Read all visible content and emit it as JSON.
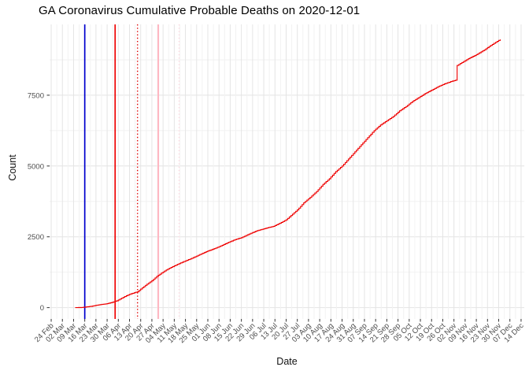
{
  "chart_data": {
    "type": "line",
    "title": "GA Coronavirus Cumulative Probable Deaths on 2020-12-01",
    "xlabel": "Date",
    "ylabel": "Count",
    "x_range": [
      "2020-02-23",
      "2020-12-16"
    ],
    "ylim": [
      -400,
      10000
    ],
    "grid": true,
    "legend": "none",
    "x_tick_start": "2020-02-24",
    "x_tick_interval_days": 7,
    "x_tick_labels": [
      "24 Feb",
      "02 Mar",
      "09 Mar",
      "16 Mar",
      "23 Mar",
      "30 Mar",
      "06 Apr",
      "13 Apr",
      "20 Apr",
      "27 Apr",
      "04 May",
      "11 May",
      "18 May",
      "25 May",
      "01 Jun",
      "08 Jun",
      "15 Jun",
      "22 Jun",
      "29 Jun",
      "06 Jul",
      "13 Jul",
      "20 Jul",
      "27 Jul",
      "03 Aug",
      "10 Aug",
      "17 Aug",
      "24 Aug",
      "31 Aug",
      "07 Sep",
      "14 Sep",
      "21 Sep",
      "28 Sep",
      "05 Oct",
      "12 Oct",
      "19 Oct",
      "26 Oct",
      "02 Nov",
      "09 Nov",
      "16 Nov",
      "23 Nov",
      "30 Nov",
      "07 Dec",
      "14 Dec"
    ],
    "y_ticks": [
      0,
      2500,
      5000,
      7500
    ],
    "y_tick_labels": [
      "0",
      "2500",
      "5000",
      "7500"
    ],
    "y_minor_ticks": [
      1250,
      3750,
      6250,
      8750
    ],
    "colors": {
      "background": "#ffffff",
      "major_grid": "#e4e4e4",
      "minor_grid": "#f2f2f2",
      "axis_text": "#4d4d4d",
      "tick_mark": "#333333",
      "series_red": "#ee0000"
    },
    "event_lines": [
      {
        "name": "blue-event-line",
        "date": "2020-03-16",
        "color": "#0000cd",
        "style": "solid",
        "width": 1.7
      },
      {
        "name": "red-event-line",
        "date": "2020-04-04",
        "color": "#ee0000",
        "style": "solid",
        "width": 1.7
      },
      {
        "name": "red-dotted-event-line",
        "date": "2020-04-18",
        "color": "#dd0000",
        "style": "dotted",
        "width": 1.4
      },
      {
        "name": "pink-event-line",
        "date": "2020-05-01",
        "color": "#ffb6c1",
        "style": "solid",
        "width": 2.0
      },
      {
        "name": "pink-dotted-event-line",
        "date": "2020-05-14",
        "color": "#ffd9e0",
        "style": "dotted",
        "width": 1.4
      }
    ],
    "series": [
      {
        "name": "Cumulative probable deaths",
        "color": "#ee0000",
        "points": [
          [
            "2020-03-10",
            0
          ],
          [
            "2020-03-14",
            5
          ],
          [
            "2020-03-17",
            25
          ],
          [
            "2020-03-20",
            45
          ],
          [
            "2020-03-23",
            80
          ],
          [
            "2020-03-26",
            108
          ],
          [
            "2020-03-30",
            140
          ],
          [
            "2020-04-02",
            185
          ],
          [
            "2020-04-05",
            240
          ],
          [
            "2020-04-08",
            330
          ],
          [
            "2020-04-11",
            420
          ],
          [
            "2020-04-14",
            490
          ],
          [
            "2020-04-18",
            560
          ],
          [
            "2020-04-21",
            700
          ],
          [
            "2020-04-24",
            830
          ],
          [
            "2020-04-27",
            950
          ],
          [
            "2020-04-30",
            1100
          ],
          [
            "2020-05-03",
            1220
          ],
          [
            "2020-05-06",
            1330
          ],
          [
            "2020-05-09",
            1420
          ],
          [
            "2020-05-12",
            1500
          ],
          [
            "2020-05-15",
            1580
          ],
          [
            "2020-05-18",
            1650
          ],
          [
            "2020-05-21",
            1720
          ],
          [
            "2020-05-25",
            1820
          ],
          [
            "2020-05-28",
            1900
          ],
          [
            "2020-06-01",
            2000
          ],
          [
            "2020-06-04",
            2060
          ],
          [
            "2020-06-08",
            2150
          ],
          [
            "2020-06-11",
            2230
          ],
          [
            "2020-06-15",
            2330
          ],
          [
            "2020-06-18",
            2400
          ],
          [
            "2020-06-22",
            2470
          ],
          [
            "2020-06-25",
            2550
          ],
          [
            "2020-06-29",
            2650
          ],
          [
            "2020-07-02",
            2720
          ],
          [
            "2020-07-06",
            2780
          ],
          [
            "2020-07-09",
            2830
          ],
          [
            "2020-07-12",
            2870
          ],
          [
            "2020-07-16",
            2980
          ],
          [
            "2020-07-20",
            3100
          ],
          [
            "2020-07-23",
            3250
          ],
          [
            "2020-07-27",
            3450
          ],
          [
            "2020-07-31",
            3700
          ],
          [
            "2020-08-04",
            3890
          ],
          [
            "2020-08-08",
            4100
          ],
          [
            "2020-08-12",
            4350
          ],
          [
            "2020-08-16",
            4550
          ],
          [
            "2020-08-20",
            4800
          ],
          [
            "2020-08-24",
            5000
          ],
          [
            "2020-08-28",
            5250
          ],
          [
            "2020-09-01",
            5500
          ],
          [
            "2020-09-05",
            5750
          ],
          [
            "2020-09-09",
            6000
          ],
          [
            "2020-09-13",
            6250
          ],
          [
            "2020-09-17",
            6450
          ],
          [
            "2020-09-21",
            6600
          ],
          [
            "2020-09-25",
            6750
          ],
          [
            "2020-09-29",
            6950
          ],
          [
            "2020-10-03",
            7100
          ],
          [
            "2020-10-07",
            7280
          ],
          [
            "2020-10-11",
            7420
          ],
          [
            "2020-10-15",
            7560
          ],
          [
            "2020-10-19",
            7680
          ],
          [
            "2020-10-23",
            7800
          ],
          [
            "2020-10-27",
            7900
          ],
          [
            "2020-10-31",
            7980
          ],
          [
            "2020-11-03",
            8030
          ],
          [
            "2020-11-04",
            8550
          ],
          [
            "2020-11-06",
            8620
          ],
          [
            "2020-11-09",
            8720
          ],
          [
            "2020-11-12",
            8820
          ],
          [
            "2020-11-15",
            8900
          ],
          [
            "2020-11-18",
            9000
          ],
          [
            "2020-11-21",
            9100
          ],
          [
            "2020-11-24",
            9220
          ],
          [
            "2020-11-27",
            9330
          ],
          [
            "2020-11-29",
            9400
          ],
          [
            "2020-12-01",
            9470
          ]
        ]
      }
    ]
  }
}
